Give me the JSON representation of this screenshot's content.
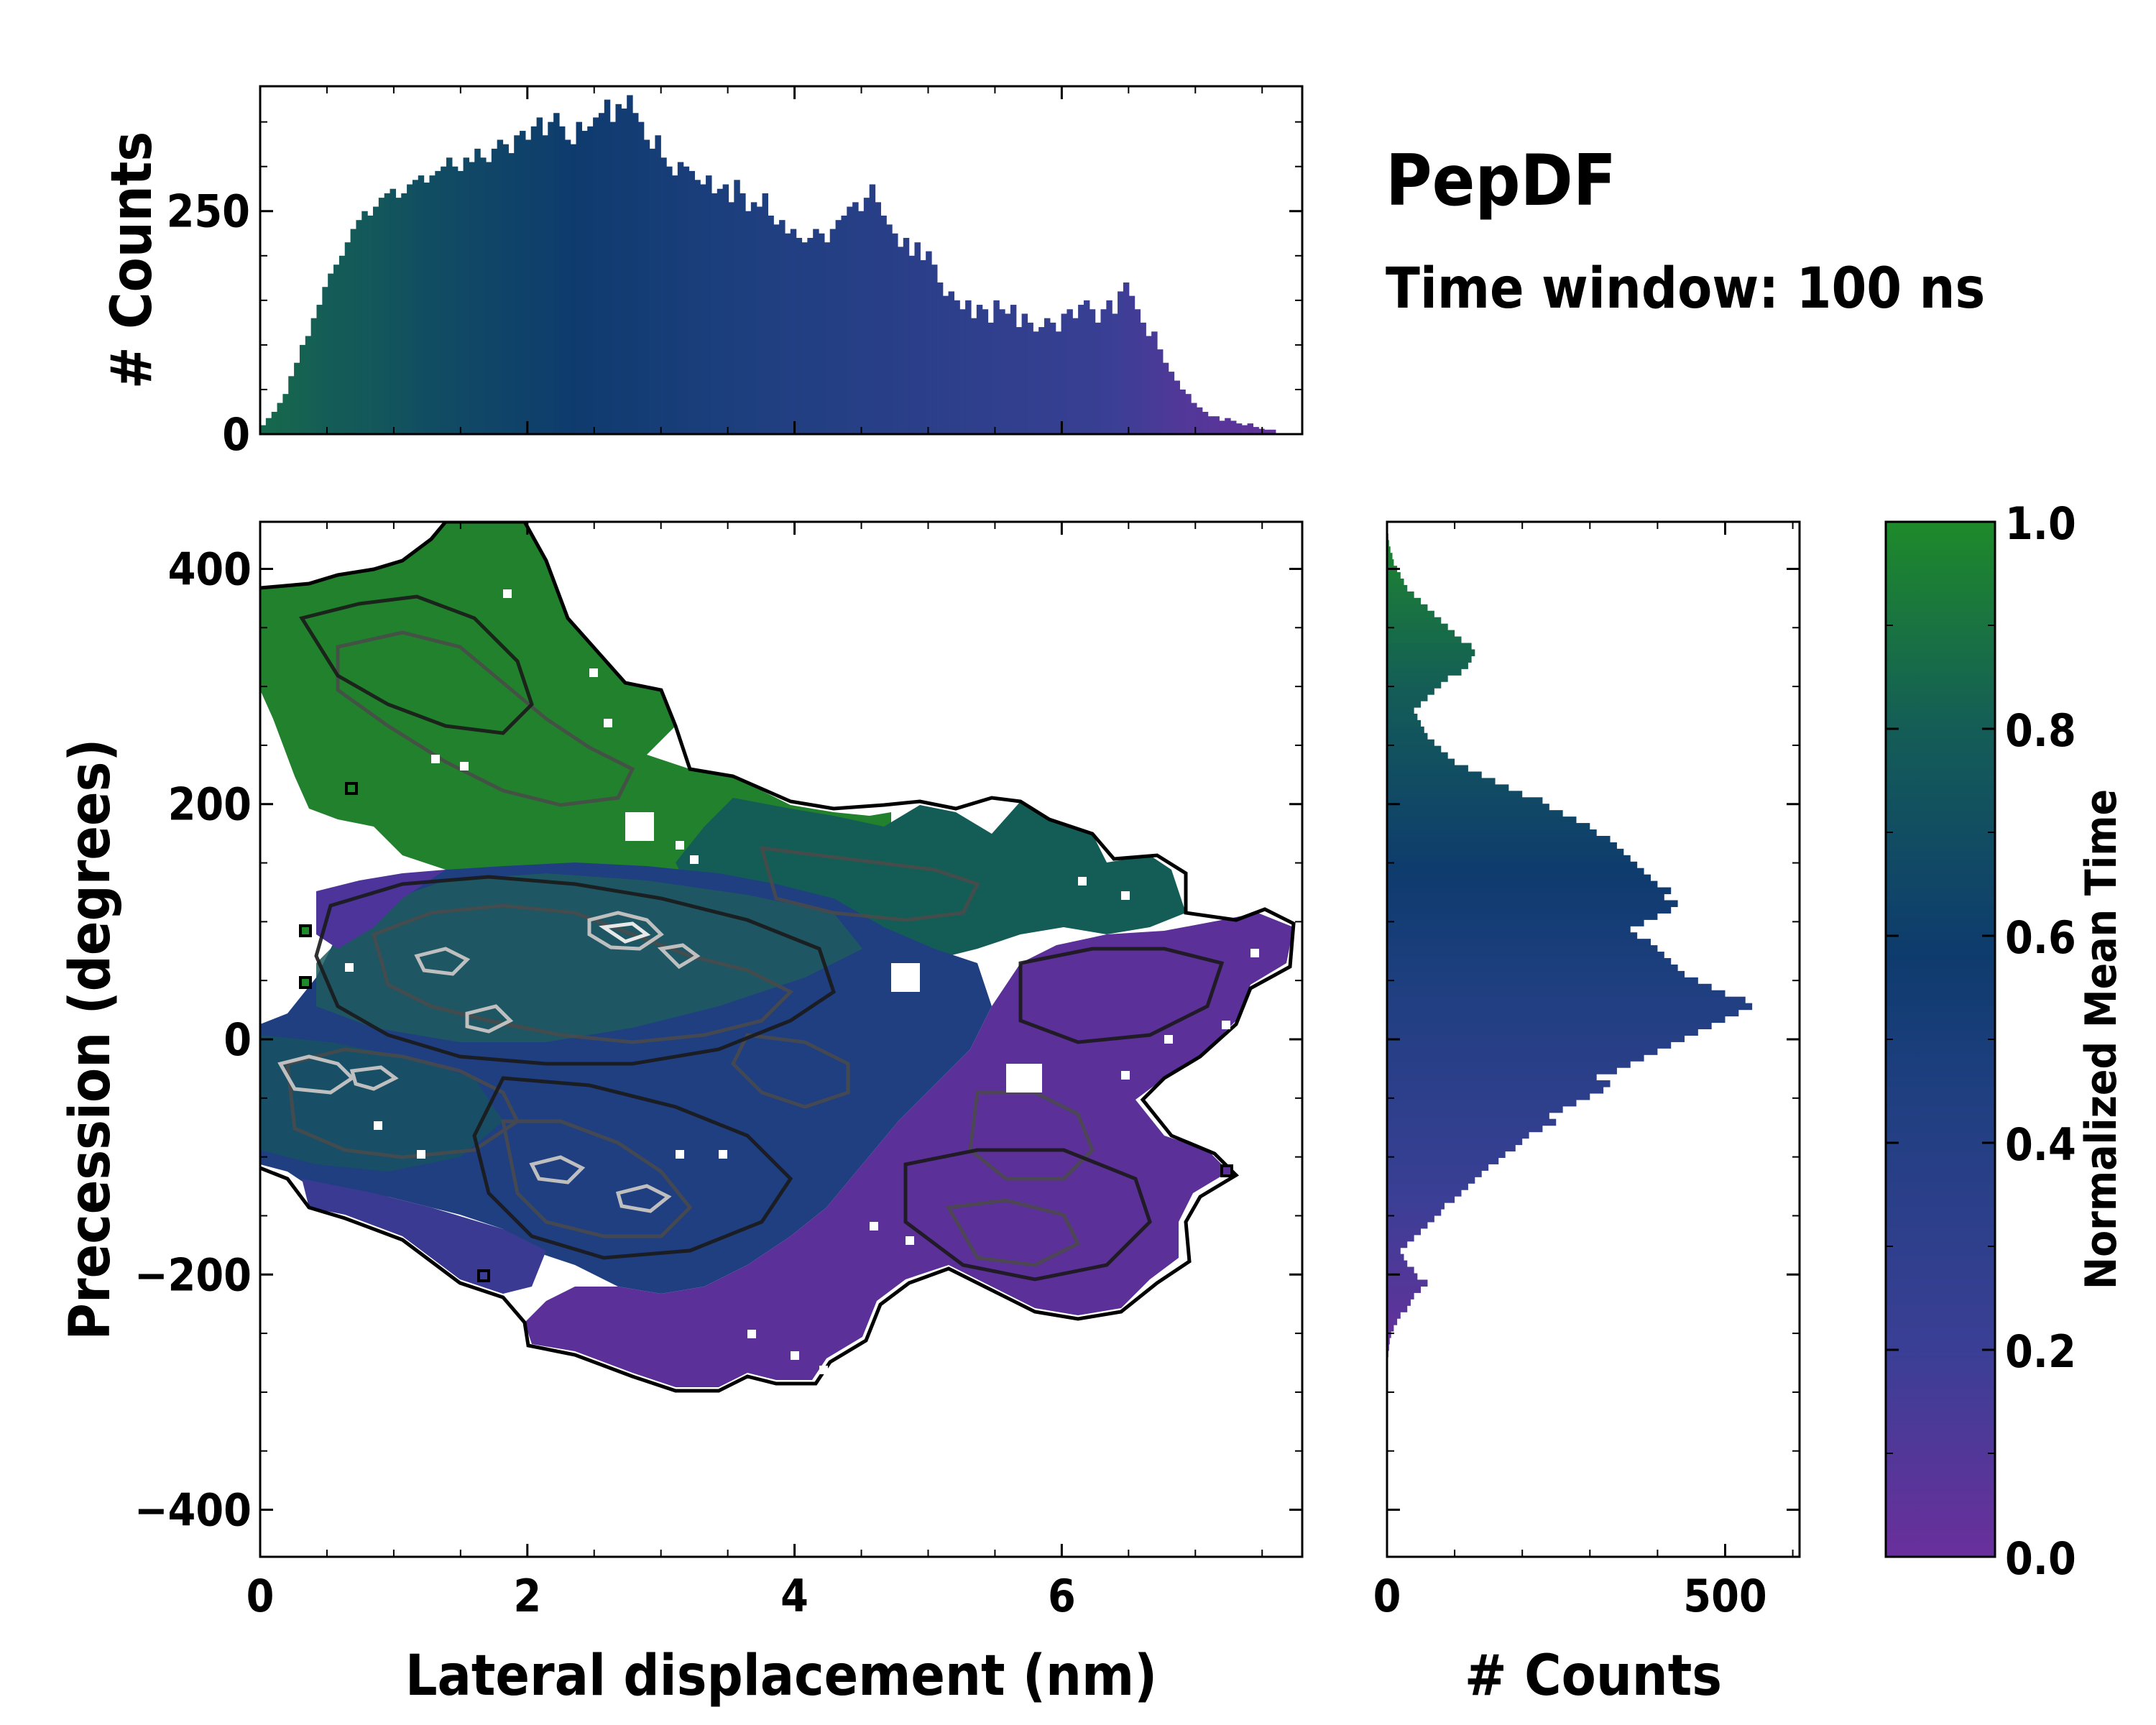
{
  "chart_data": [
    {
      "panel": "top-histogram",
      "type": "bar",
      "title": "PepDF",
      "subtitle": "Time window: 100 ns",
      "xlabel": "",
      "ylabel": "# Counts",
      "xlim": [
        0,
        7.8
      ],
      "ylim": [
        0,
        390
      ],
      "yticks": [
        "0",
        "250"
      ],
      "ytick_values": [
        0,
        250
      ],
      "bin_range": [
        0,
        7.6
      ],
      "values": [
        10,
        18,
        25,
        35,
        45,
        65,
        80,
        100,
        110,
        130,
        145,
        165,
        180,
        190,
        200,
        215,
        230,
        240,
        250,
        245,
        255,
        265,
        270,
        275,
        265,
        270,
        280,
        285,
        290,
        282,
        290,
        295,
        300,
        310,
        300,
        295,
        310,
        305,
        320,
        310,
        305,
        320,
        330,
        325,
        315,
        335,
        340,
        330,
        345,
        355,
        335,
        350,
        360,
        345,
        330,
        325,
        350,
        340,
        345,
        355,
        360,
        375,
        350,
        370,
        365,
        380,
        360,
        350,
        330,
        320,
        335,
        310,
        300,
        290,
        305,
        300,
        295,
        285,
        280,
        290,
        270,
        275,
        280,
        260,
        285,
        270,
        250,
        260,
        255,
        270,
        245,
        235,
        240,
        225,
        230,
        220,
        215,
        220,
        230,
        225,
        215,
        230,
        240,
        245,
        255,
        260,
        250,
        265,
        280,
        260,
        245,
        235,
        225,
        210,
        220,
        200,
        215,
        195,
        205,
        190,
        170,
        155,
        160,
        150,
        140,
        150,
        130,
        145,
        140,
        125,
        150,
        140,
        135,
        145,
        120,
        135,
        125,
        115,
        120,
        130,
        125,
        115,
        135,
        140,
        130,
        145,
        150,
        140,
        125,
        140,
        150,
        135,
        160,
        170,
        155,
        140,
        125,
        110,
        115,
        95,
        80,
        70,
        60,
        50,
        45,
        35,
        30,
        25,
        20,
        20,
        15,
        18,
        15,
        12,
        10,
        12,
        8,
        6,
        5,
        5
      ],
      "time_colors": [
        0.85,
        0.84,
        0.83,
        0.82,
        0.8,
        0.79,
        0.78,
        0.77,
        0.76,
        0.74,
        0.72,
        0.7,
        0.69,
        0.68,
        0.66,
        0.65,
        0.64,
        0.63,
        0.62,
        0.61,
        0.6,
        0.58,
        0.57,
        0.56,
        0.55,
        0.54,
        0.53,
        0.52,
        0.51,
        0.5,
        0.49,
        0.48,
        0.47,
        0.46,
        0.45,
        0.44,
        0.43,
        0.42,
        0.41,
        0.4,
        0.39,
        0.38,
        0.37,
        0.36,
        0.35,
        0.34,
        0.33,
        0.32,
        0.31,
        0.3,
        0.29,
        0.28,
        0.27,
        0.26,
        0.25,
        0.24,
        0.23,
        0.22,
        0.2,
        0.18,
        0.16,
        0.14,
        0.12,
        0.1,
        0.09,
        0.08,
        0.07,
        0.06,
        0.05,
        0.04
      ]
    },
    {
      "panel": "main-2d-histogram",
      "type": "heatmap",
      "xlabel": "Lateral displacement (nm)",
      "ylabel": "Precession (degrees)",
      "xlim": [
        0,
        7.8
      ],
      "ylim": [
        -440,
        440
      ],
      "xticks": [
        "0",
        "2",
        "4",
        "6"
      ],
      "xtick_values": [
        0,
        2,
        4,
        6
      ],
      "yticks": [
        "−400",
        "−200",
        "0",
        "200",
        "400"
      ],
      "ytick_values": [
        -400,
        -200,
        0,
        200,
        400
      ],
      "color_encodes": "Normalized Mean Time"
    },
    {
      "panel": "right-histogram",
      "type": "bar",
      "orientation": "horizontal",
      "xlabel": "# Counts",
      "ylabel": "",
      "xlim": [
        0,
        610
      ],
      "ylim": [
        -440,
        440
      ],
      "xticks": [
        "0",
        "500"
      ],
      "xtick_values": [
        0,
        500
      ],
      "bin_range": [
        -270,
        430
      ],
      "values": [
        2,
        3,
        4,
        6,
        10,
        15,
        20,
        30,
        35,
        40,
        50,
        60,
        45,
        40,
        30,
        25,
        20,
        30,
        40,
        50,
        60,
        70,
        80,
        85,
        100,
        110,
        120,
        130,
        140,
        150,
        165,
        175,
        190,
        200,
        210,
        230,
        250,
        240,
        260,
        280,
        300,
        320,
        330,
        310,
        340,
        360,
        380,
        400,
        420,
        440,
        460,
        480,
        500,
        520,
        540,
        530,
        500,
        480,
        460,
        440,
        430,
        420,
        410,
        400,
        390,
        370,
        360,
        380,
        400,
        420,
        430,
        410,
        420,
        400,
        390,
        380,
        370,
        360,
        350,
        340,
        330,
        310,
        300,
        280,
        260,
        240,
        230,
        200,
        180,
        160,
        140,
        120,
        100,
        90,
        80,
        70,
        60,
        55,
        50,
        45,
        40,
        50,
        60,
        70,
        80,
        90,
        110,
        120,
        125,
        130,
        125,
        110,
        100,
        90,
        80,
        70,
        60,
        50,
        40,
        30,
        25,
        20,
        15,
        10,
        8,
        5,
        3,
        2
      ]
    },
    {
      "panel": "colorbar",
      "type": "colorbar",
      "label": "Normalized Mean Time",
      "range": [
        0.0,
        1.0
      ],
      "ticks": [
        "0.0",
        "0.2",
        "0.4",
        "0.6",
        "0.8",
        "1.0"
      ],
      "tick_values": [
        0.0,
        0.2,
        0.4,
        0.6,
        0.8,
        1.0
      ],
      "colors": [
        "#6a2f9c",
        "#3a3f95",
        "#1f3f80",
        "#0e3b6e",
        "#145d57",
        "#1e8a2a"
      ]
    }
  ]
}
